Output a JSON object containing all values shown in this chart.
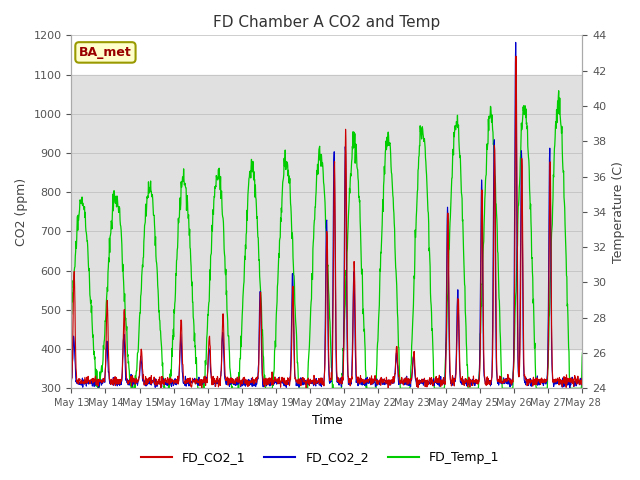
{
  "title": "FD Chamber A CO2 and Temp",
  "xlabel": "Time",
  "ylabel_left": "CO2 (ppm)",
  "ylabel_right": "Temperature (C)",
  "ylim_left": [
    300,
    1200
  ],
  "ylim_right": [
    24,
    44
  ],
  "yticks_left": [
    300,
    400,
    500,
    600,
    700,
    800,
    900,
    1000,
    1100,
    1200
  ],
  "yticks_right": [
    24,
    26,
    28,
    30,
    32,
    34,
    36,
    38,
    40,
    42,
    44
  ],
  "shade_ymin": 400,
  "shade_ymax": 1100,
  "shade_color": "#e0e0e0",
  "background_color": "#ffffff",
  "grid_color": "#bbbbbb",
  "annotation_text": "BA_met",
  "annotation_box_color": "#ffffcc",
  "annotation_text_color": "#990000",
  "annotation_border_color": "#999900",
  "line_co2_1_color": "#cc0000",
  "line_co2_2_color": "#0000cc",
  "line_temp_color": "#00cc00",
  "legend_labels": [
    "FD_CO2_1",
    "FD_CO2_2",
    "FD_Temp_1"
  ],
  "x_tick_days": [
    13,
    14,
    15,
    16,
    17,
    18,
    19,
    20,
    21,
    22,
    23,
    24,
    25,
    26,
    27,
    28
  ],
  "n_days": 15,
  "figsize": [
    6.4,
    4.8
  ],
  "dpi": 100
}
